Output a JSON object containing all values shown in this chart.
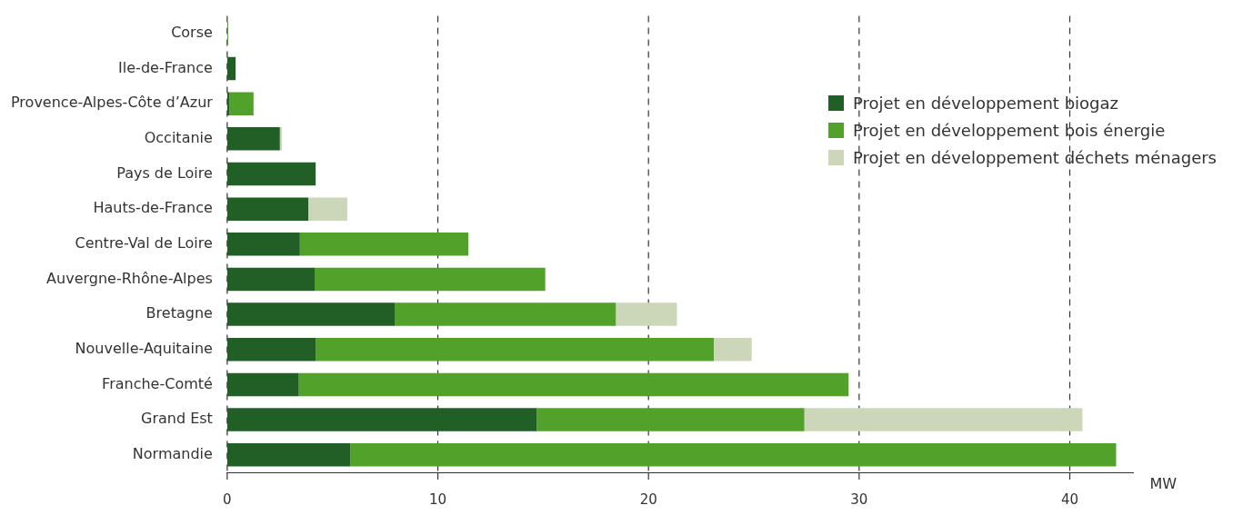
{
  "chart_data": {
    "type": "bar",
    "orientation": "horizontal",
    "stacked": true,
    "categories": [
      "Corse",
      "Ile-de-France",
      "Provence-Alpes-Côte d’Azur",
      "Occitanie",
      "Pays de Loire",
      "Hauts-de-France",
      "Centre-Val de Loire",
      "Auvergne-Rhône-Alpes",
      "Bretagne",
      "Nouvelle-Aquitaine",
      "Franche-Comté",
      "Grand Est",
      "Normandie"
    ],
    "series": [
      {
        "name": "Projet en développement biogaz",
        "color": "#225f27",
        "values": [
          0,
          0.4,
          0.1,
          2.5,
          4.2,
          3.85,
          3.45,
          4.15,
          7.95,
          4.2,
          3.4,
          14.7,
          5.85
        ]
      },
      {
        "name": "Projet en développement bois énergie",
        "color": "#52a12b",
        "values": [
          0.05,
          0,
          1.15,
          0,
          0,
          0,
          8.0,
          10.95,
          10.5,
          18.9,
          26.1,
          12.7,
          36.35
        ]
      },
      {
        "name": "Projet en développement déchets ménagers",
        "color": "#cbd7b8",
        "values": [
          0,
          0,
          0,
          0.1,
          0,
          1.85,
          0,
          0,
          2.9,
          1.8,
          0,
          13.2,
          0
        ]
      }
    ],
    "xlabel": "MW",
    "xlim": [
      0,
      43
    ],
    "xticks": [
      0,
      10,
      20,
      30,
      40
    ],
    "grid": "x",
    "line_style": "dashed",
    "legend": "top right"
  }
}
